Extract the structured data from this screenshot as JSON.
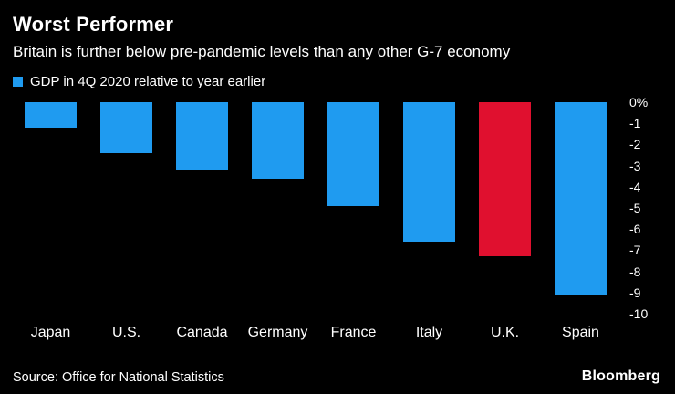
{
  "header": {
    "title": "Worst Performer",
    "subtitle": "Britain is further below pre-pandemic levels than any other G-7 economy",
    "legend_label": "GDP in 4Q 2020 relative to year earlier"
  },
  "chart_data": {
    "type": "bar",
    "title": "Worst Performer",
    "subtitle": "Britain is further below pre-pandemic levels than any other G-7 economy",
    "legend": "GDP in 4Q 2020 relative to year earlier",
    "categories": [
      "Japan",
      "U.S.",
      "Canada",
      "Germany",
      "France",
      "Italy",
      "U.K.",
      "Spain"
    ],
    "values": [
      -1.2,
      -2.4,
      -3.2,
      -3.6,
      -4.9,
      -6.6,
      -7.3,
      -9.1
    ],
    "unit": "%",
    "ylim": [
      0,
      -10
    ],
    "y_ticks": [
      0,
      -1,
      -2,
      -3,
      -4,
      -5,
      -6,
      -7,
      -8,
      -9,
      -10
    ],
    "y_tick_labels": [
      "0%",
      "-1",
      "-2",
      "-3",
      "-4",
      "-5",
      "-6",
      "-7",
      "-8",
      "-9",
      "-10"
    ],
    "highlight_index": 6,
    "grid": false,
    "legend_position": "top-left",
    "axis_side": "right"
  },
  "colors": {
    "background": "#000000",
    "text": "#ffffff",
    "bar_default": "#1f9bf0",
    "bar_highlight": "#e0102f"
  },
  "footer": {
    "source": "Source: Office for National Statistics",
    "brand": "Bloomberg"
  }
}
